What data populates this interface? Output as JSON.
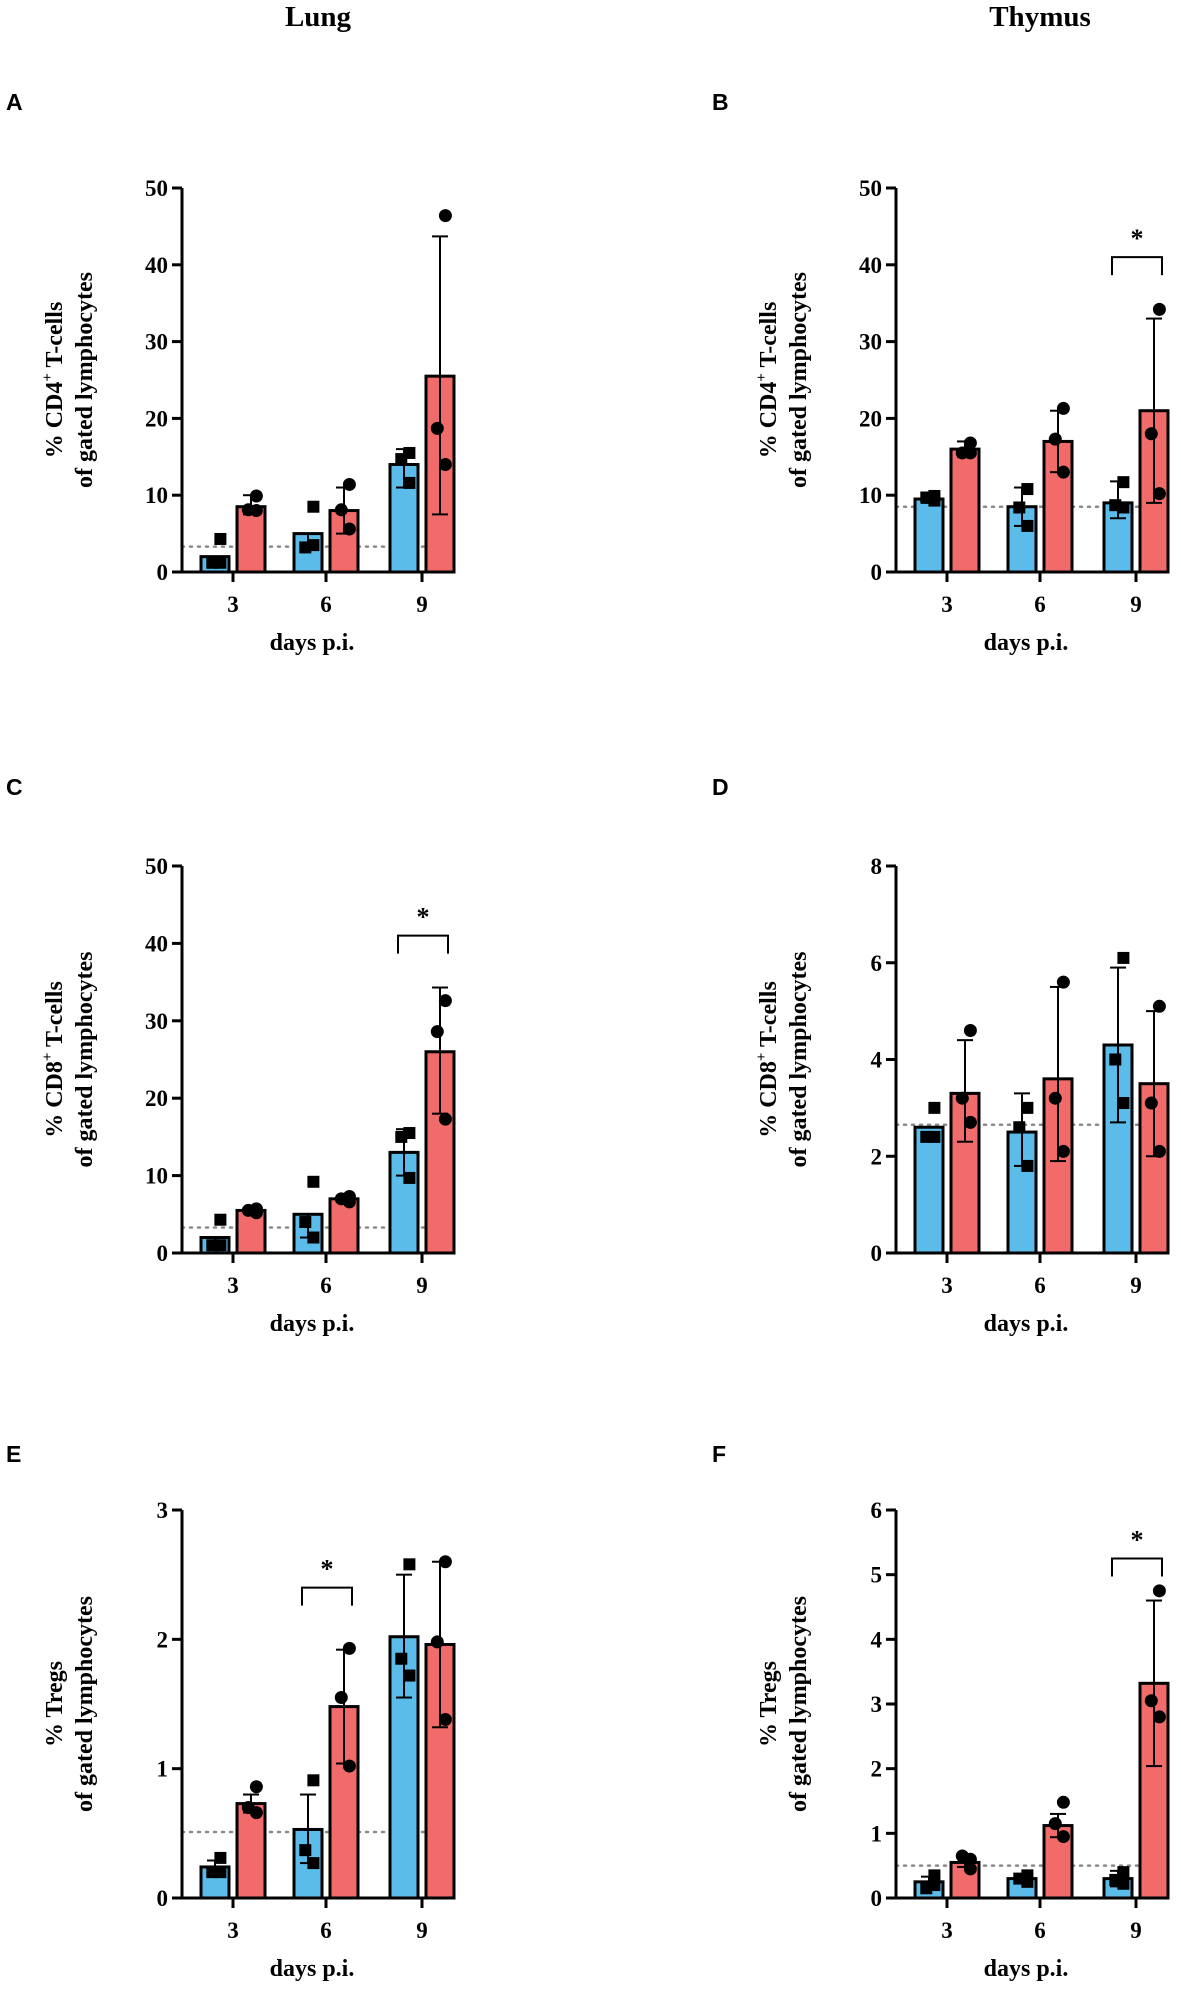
{
  "column_titles": [
    "Lung",
    "Thymus"
  ],
  "colors": {
    "blue": "#5bbcea",
    "red": "#f26b6b",
    "dotted": "#8a8a8a",
    "stroke": "#000000"
  },
  "chart_data": [
    {
      "panel": "A",
      "type": "bar",
      "tissue": "Lung",
      "categories": [
        "3",
        "6",
        "9"
      ],
      "xlabel": "days p.i.",
      "ylabel_main": "% CD4",
      "ylabel_sup": "+",
      "ylabel_tail": " T-cells",
      "ylabel_line2": "of gated lymphocytes",
      "ylim": [
        0,
        50
      ],
      "yticks": [
        "0",
        "10",
        "20",
        "30",
        "40",
        "50"
      ],
      "baseline": 3.3,
      "series": [
        {
          "name": "blue",
          "marker": "square",
          "values": [
            2,
            5,
            14
          ],
          "err_high": [
            2,
            5,
            16
          ],
          "err_low": [
            1,
            3,
            11
          ],
          "points": [
            [
              4.3,
              1.2,
              1.2
            ],
            [
              8.5,
              3.2,
              3.5
            ],
            [
              15.5,
              14.7,
              11.6
            ]
          ]
        },
        {
          "name": "red",
          "marker": "circle",
          "values": [
            8.5,
            8,
            25.5
          ],
          "err_high": [
            10,
            11,
            43.7
          ],
          "err_low": [
            7.5,
            5,
            7.5
          ],
          "points": [
            [
              9.9,
              8.1,
              8
            ],
            [
              11.4,
              8.1,
              5.6
            ],
            [
              46.4,
              18.7,
              14
            ]
          ]
        }
      ],
      "significance": []
    },
    {
      "panel": "B",
      "type": "bar",
      "tissue": "Thymus",
      "categories": [
        "3",
        "6",
        "9"
      ],
      "xlabel": "days p.i.",
      "ylabel_main": "% CD4",
      "ylabel_sup": "+",
      "ylabel_tail": " T-cells",
      "ylabel_line2": "of gated lymphocytes",
      "ylim": [
        0,
        50
      ],
      "yticks": [
        "0",
        "10",
        "20",
        "30",
        "40",
        "50"
      ],
      "baseline": 8.5,
      "series": [
        {
          "name": "blue",
          "marker": "square",
          "values": [
            9.5,
            8.5,
            9
          ],
          "err_high": [
            10,
            11,
            11.8
          ],
          "err_low": [
            9,
            6,
            7
          ],
          "points": [
            [
              9.9,
              9.7,
              9.3
            ],
            [
              10.8,
              8.4,
              6
            ],
            [
              11.7,
              8.7,
              8.4
            ]
          ]
        },
        {
          "name": "red",
          "marker": "circle",
          "values": [
            16,
            17,
            21
          ],
          "err_high": [
            17,
            21,
            33
          ],
          "err_low": [
            15,
            13,
            9
          ],
          "points": [
            [
              16.8,
              15.5,
              15.5
            ],
            [
              21.3,
              17.3,
              13
            ],
            [
              34.2,
              18,
              10.2
            ]
          ]
        }
      ],
      "significance": [
        {
          "category_index": 2,
          "label": "*",
          "y": 41
        }
      ]
    },
    {
      "panel": "C",
      "type": "bar",
      "tissue": "Lung",
      "categories": [
        "3",
        "6",
        "9"
      ],
      "xlabel": "days p.i.",
      "ylabel_main": "% CD8",
      "ylabel_sup": "+",
      "ylabel_tail": " T-cells",
      "ylabel_line2": "of gated lymphocytes",
      "ylim": [
        0,
        50
      ],
      "yticks": [
        "0",
        "10",
        "20",
        "30",
        "40",
        "50"
      ],
      "baseline": 3.3,
      "series": [
        {
          "name": "blue",
          "marker": "square",
          "values": [
            2,
            5,
            13
          ],
          "err_high": [
            2,
            5,
            16
          ],
          "err_low": [
            1,
            2,
            10
          ],
          "points": [
            [
              4.3,
              1,
              1
            ],
            [
              9.2,
              4,
              2
            ],
            [
              15.5,
              15,
              9.7
            ]
          ]
        },
        {
          "name": "red",
          "marker": "circle",
          "values": [
            5.5,
            7,
            26
          ],
          "err_high": [
            5.8,
            7.4,
            34.3
          ],
          "err_low": [
            5.2,
            6.6,
            18
          ],
          "points": [
            [
              5.2,
              5.5,
              5.7
            ],
            [
              6.6,
              7,
              7.3
            ],
            [
              32.6,
              28.6,
              17.3
            ]
          ]
        }
      ],
      "significance": [
        {
          "category_index": 2,
          "label": "*",
          "y": 41
        }
      ]
    },
    {
      "panel": "D",
      "type": "bar",
      "tissue": "Thymus",
      "categories": [
        "3",
        "6",
        "9"
      ],
      "xlabel": "days p.i.",
      "ylabel_main": "% CD8",
      "ylabel_sup": "+",
      "ylabel_tail": " T-cells",
      "ylabel_line2": "of gated lymphocytes",
      "ylim": [
        0,
        8
      ],
      "yticks": [
        "0",
        "2",
        "4",
        "6",
        "8"
      ],
      "baseline": 2.65,
      "series": [
        {
          "name": "blue",
          "marker": "square",
          "values": [
            2.6,
            2.5,
            4.3
          ],
          "err_high": [
            2.6,
            3.3,
            5.9
          ],
          "err_low": [
            2.6,
            1.8,
            2.7
          ],
          "points": [
            [
              3,
              2.4,
              2.4
            ],
            [
              3,
              2.6,
              1.8
            ],
            [
              6.1,
              4,
              3.1
            ]
          ]
        },
        {
          "name": "red",
          "marker": "circle",
          "values": [
            3.3,
            3.6,
            3.5
          ],
          "err_high": [
            4.4,
            5.5,
            5
          ],
          "err_low": [
            2.3,
            1.9,
            2
          ],
          "points": [
            [
              4.6,
              3.2,
              2.7
            ],
            [
              5.6,
              3.2,
              2.1
            ],
            [
              5.1,
              3.1,
              2.1
            ]
          ]
        }
      ],
      "significance": []
    },
    {
      "panel": "E",
      "type": "bar",
      "tissue": "Lung",
      "categories": [
        "3",
        "6",
        "9"
      ],
      "xlabel": "days p.i.",
      "ylabel_main": "% Tregs",
      "ylabel_sup": "",
      "ylabel_tail": "",
      "ylabel_line2": "of gated lymphocytes",
      "ylim": [
        0,
        3
      ],
      "yticks": [
        "0",
        "1",
        "2",
        "3"
      ],
      "baseline": 0.51,
      "series": [
        {
          "name": "blue",
          "marker": "square",
          "values": [
            0.24,
            0.53,
            2.02
          ],
          "err_high": [
            0.29,
            0.8,
            2.5
          ],
          "err_low": [
            0.19,
            0.27,
            1.55
          ],
          "points": [
            [
              0.31,
              0.2,
              0.2
            ],
            [
              0.91,
              0.37,
              0.27
            ],
            [
              2.58,
              1.85,
              1.72
            ]
          ]
        },
        {
          "name": "red",
          "marker": "circle",
          "values": [
            0.73,
            1.48,
            1.96
          ],
          "err_high": [
            0.8,
            1.92,
            2.6
          ],
          "err_low": [
            0.66,
            1.04,
            1.32
          ],
          "points": [
            [
              0.86,
              0.7,
              0.66
            ],
            [
              1.93,
              1.55,
              1.02
            ],
            [
              2.6,
              1.98,
              1.38
            ]
          ]
        }
      ],
      "significance": [
        {
          "category_index": 1,
          "label": "*",
          "y": 2.4
        }
      ]
    },
    {
      "panel": "F",
      "type": "bar",
      "tissue": "Thymus",
      "categories": [
        "3",
        "6",
        "9"
      ],
      "xlabel": "days p.i.",
      "ylabel_main": "% Tregs",
      "ylabel_sup": "",
      "ylabel_tail": "",
      "ylabel_line2": "of gated lymphocytes",
      "ylim": [
        0,
        6
      ],
      "yticks": [
        "0",
        "1",
        "2",
        "3",
        "4",
        "5",
        "6"
      ],
      "baseline": 0.5,
      "series": [
        {
          "name": "blue",
          "marker": "square",
          "values": [
            0.25,
            0.3,
            0.3
          ],
          "err_high": [
            0.33,
            0.33,
            0.42
          ],
          "err_low": [
            0.17,
            0.27,
            0.18
          ],
          "points": [
            [
              0.35,
              0.15,
              0.2
            ],
            [
              0.35,
              0.3,
              0.25
            ],
            [
              0.4,
              0.28,
              0.22
            ]
          ]
        },
        {
          "name": "red",
          "marker": "circle",
          "values": [
            0.55,
            1.12,
            3.32
          ],
          "err_high": [
            0.62,
            1.3,
            4.6
          ],
          "err_low": [
            0.48,
            0.94,
            2.04
          ],
          "points": [
            [
              0.6,
              0.65,
              0.45
            ],
            [
              1.48,
              1.15,
              0.95
            ],
            [
              4.75,
              3.05,
              2.8
            ]
          ]
        }
      ],
      "significance": [
        {
          "category_index": 2,
          "label": "*",
          "y": 5.25
        }
      ]
    }
  ]
}
